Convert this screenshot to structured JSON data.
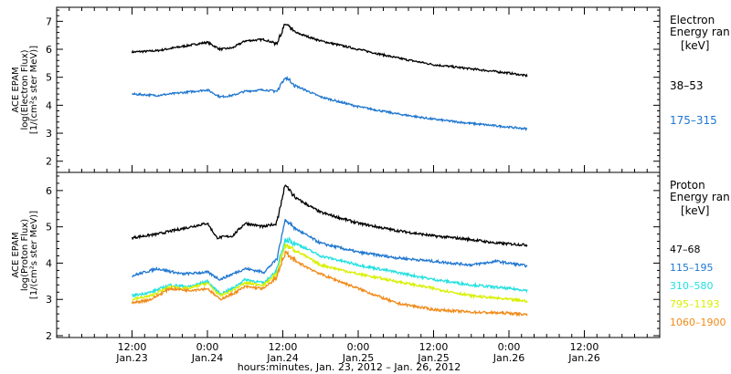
{
  "chart_data": [
    {
      "type": "line",
      "ylabel_lines": [
        "ACE EPAM",
        "log(Electron Flux)",
        "[1/(cm²s ster MeV)]"
      ],
      "legend_title": [
        "Electron",
        "Energy ran"
      ],
      "legend_unit": "[keV]",
      "ylim": [
        1.6,
        7.5
      ],
      "yticks": [
        "2",
        "3",
        "4",
        "5",
        "6",
        "7"
      ],
      "series": [
        {
          "name": "38–53",
          "color": "#000000",
          "anchors": [
            [
              0,
              5.9
            ],
            [
              4,
              5.95
            ],
            [
              8,
              6.1
            ],
            [
              12,
              6.25
            ],
            [
              14,
              6.0
            ],
            [
              16,
              6.05
            ],
            [
              18,
              6.3
            ],
            [
              21,
              6.35
            ],
            [
              23,
              6.2
            ],
            [
              24.4,
              6.9
            ],
            [
              26,
              6.6
            ],
            [
              30,
              6.3
            ],
            [
              36,
              6.0
            ],
            [
              42,
              5.7
            ],
            [
              48,
              5.45
            ],
            [
              54,
              5.3
            ],
            [
              60,
              5.15
            ],
            [
              63,
              5.05
            ]
          ]
        },
        {
          "name": "175–315",
          "color": "#1f77d0",
          "anchors": [
            [
              0,
              4.4
            ],
            [
              4,
              4.35
            ],
            [
              8,
              4.45
            ],
            [
              12,
              4.55
            ],
            [
              14,
              4.3
            ],
            [
              16,
              4.35
            ],
            [
              18,
              4.5
            ],
            [
              21,
              4.55
            ],
            [
              23,
              4.5
            ],
            [
              24.4,
              5.0
            ],
            [
              26,
              4.7
            ],
            [
              30,
              4.3
            ],
            [
              36,
              3.95
            ],
            [
              42,
              3.7
            ],
            [
              48,
              3.5
            ],
            [
              54,
              3.35
            ],
            [
              60,
              3.22
            ],
            [
              63,
              3.15
            ]
          ]
        }
      ]
    },
    {
      "type": "line",
      "ylabel_lines": [
        "ACE EPAM",
        "log(Proton Flux)",
        "[1/(cm²s ster MeV)]"
      ],
      "legend_title": [
        "Proton",
        "Energy ran"
      ],
      "legend_unit": "[keV]",
      "ylim": [
        1.95,
        6.5
      ],
      "yticks": [
        "2",
        "3",
        "4",
        "5",
        "6"
      ],
      "series": [
        {
          "name": "47–68",
          "color": "#000000",
          "anchors": [
            [
              0,
              4.7
            ],
            [
              4,
              4.8
            ],
            [
              8,
              4.95
            ],
            [
              12,
              5.1
            ],
            [
              13.5,
              4.7
            ],
            [
              16,
              4.75
            ],
            [
              18,
              5.1
            ],
            [
              21,
              5.0
            ],
            [
              23,
              5.1
            ],
            [
              24.4,
              6.15
            ],
            [
              26,
              5.8
            ],
            [
              30,
              5.4
            ],
            [
              36,
              5.1
            ],
            [
              42,
              4.9
            ],
            [
              48,
              4.75
            ],
            [
              54,
              4.65
            ],
            [
              58,
              4.55
            ],
            [
              63,
              4.5
            ]
          ]
        },
        {
          "name": "115–195",
          "color": "#1f77d0",
          "anchors": [
            [
              0,
              3.65
            ],
            [
              4,
              3.85
            ],
            [
              8,
              3.7
            ],
            [
              12,
              3.75
            ],
            [
              14,
              3.55
            ],
            [
              16,
              3.7
            ],
            [
              18,
              3.85
            ],
            [
              21,
              3.75
            ],
            [
              23,
              4.1
            ],
            [
              24.4,
              5.2
            ],
            [
              26,
              4.95
            ],
            [
              30,
              4.55
            ],
            [
              36,
              4.3
            ],
            [
              42,
              4.15
            ],
            [
              48,
              4.05
            ],
            [
              54,
              3.95
            ],
            [
              58,
              4.05
            ],
            [
              63,
              3.92
            ]
          ]
        },
        {
          "name": "310–580",
          "color": "#22e0e0",
          "anchors": [
            [
              0,
              3.1
            ],
            [
              3,
              3.2
            ],
            [
              6,
              3.4
            ],
            [
              9,
              3.35
            ],
            [
              12,
              3.5
            ],
            [
              14,
              3.15
            ],
            [
              16,
              3.3
            ],
            [
              18,
              3.55
            ],
            [
              21,
              3.45
            ],
            [
              23,
              3.8
            ],
            [
              24.4,
              4.65
            ],
            [
              26,
              4.55
            ],
            [
              30,
              4.2
            ],
            [
              36,
              3.95
            ],
            [
              42,
              3.75
            ],
            [
              48,
              3.55
            ],
            [
              54,
              3.4
            ],
            [
              60,
              3.3
            ],
            [
              63,
              3.25
            ]
          ]
        },
        {
          "name": "795–1193",
          "color": "#d8f000",
          "anchors": [
            [
              0,
              3.0
            ],
            [
              3,
              3.1
            ],
            [
              6,
              3.35
            ],
            [
              9,
              3.3
            ],
            [
              12,
              3.45
            ],
            [
              14,
              3.1
            ],
            [
              16,
              3.25
            ],
            [
              18,
              3.45
            ],
            [
              21,
              3.4
            ],
            [
              23,
              3.7
            ],
            [
              24.4,
              4.5
            ],
            [
              26,
              4.35
            ],
            [
              30,
              3.95
            ],
            [
              36,
              3.7
            ],
            [
              42,
              3.5
            ],
            [
              48,
              3.3
            ],
            [
              54,
              3.1
            ],
            [
              60,
              3.0
            ],
            [
              63,
              2.95
            ]
          ]
        },
        {
          "name": "1060–1900",
          "color": "#f08a18",
          "anchors": [
            [
              0,
              2.9
            ],
            [
              3,
              3.0
            ],
            [
              6,
              3.3
            ],
            [
              9,
              3.25
            ],
            [
              12,
              3.3
            ],
            [
              14,
              3.0
            ],
            [
              16,
              3.15
            ],
            [
              18,
              3.35
            ],
            [
              21,
              3.3
            ],
            [
              23,
              3.6
            ],
            [
              24.4,
              4.3
            ],
            [
              26,
              4.05
            ],
            [
              30,
              3.7
            ],
            [
              36,
              3.3
            ],
            [
              42,
              2.9
            ],
            [
              48,
              2.72
            ],
            [
              54,
              2.65
            ],
            [
              60,
              2.62
            ],
            [
              63,
              2.58
            ]
          ]
        }
      ]
    }
  ],
  "xaxis": {
    "ticks": [
      {
        "time": "12:00",
        "date": "Jan.23"
      },
      {
        "time": "0:00",
        "date": "Jan.24"
      },
      {
        "time": "12:00",
        "date": "Jan.24"
      },
      {
        "time": "0:00",
        "date": "Jan.25"
      },
      {
        "time": "12:00",
        "date": "Jan.25"
      },
      {
        "time": "0:00",
        "date": "Jan.26"
      },
      {
        "time": "12:00",
        "date": "Jan.26"
      }
    ],
    "label": "hours:minutes, Jan. 23, 2012 – Jan. 26, 2012"
  }
}
